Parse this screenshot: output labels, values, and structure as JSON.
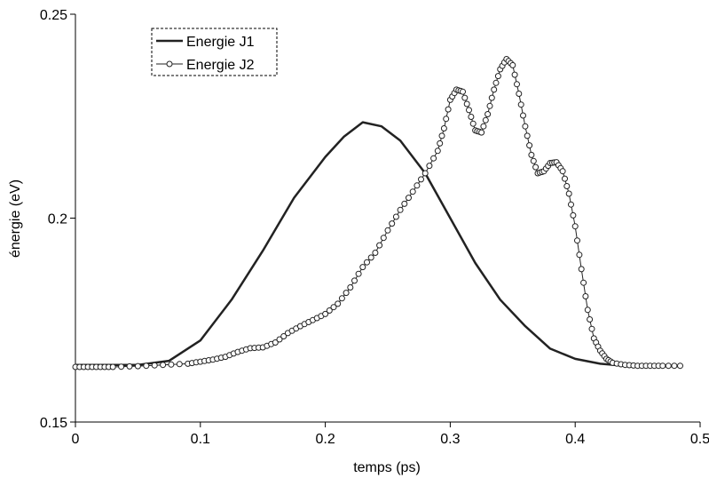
{
  "chart_data": {
    "type": "line",
    "title": "",
    "xlabel": "temps (ps)",
    "ylabel": "énergie (eV)",
    "xlim": [
      0,
      0.5
    ],
    "ylim": [
      0.15,
      0.25
    ],
    "x_ticks": [
      0,
      0.1,
      0.2,
      0.3,
      0.4,
      0.5
    ],
    "x_tick_labels": [
      "0",
      "0.1",
      "0.2",
      "0.3",
      "0.4",
      "0.5"
    ],
    "y_ticks": [
      0.15,
      0.2,
      0.25
    ],
    "y_tick_labels": [
      "0.15",
      "0.2",
      "0.25"
    ],
    "grid": false,
    "legend_position": "top-left",
    "series": [
      {
        "name": "Energie J1",
        "style": "solid-thick",
        "color": "#222222",
        "x": [
          0,
          0.05,
          0.075,
          0.1,
          0.125,
          0.15,
          0.175,
          0.2,
          0.215,
          0.23,
          0.245,
          0.26,
          0.28,
          0.3,
          0.32,
          0.34,
          0.36,
          0.38,
          0.4,
          0.42,
          0.44,
          0.46,
          0.485
        ],
        "y": [
          0.164,
          0.164,
          0.165,
          0.17,
          0.18,
          0.192,
          0.205,
          0.215,
          0.22,
          0.2235,
          0.2225,
          0.219,
          0.211,
          0.2,
          0.189,
          0.18,
          0.1735,
          0.168,
          0.1655,
          0.1643,
          0.1638,
          0.1637,
          0.1637
        ]
      },
      {
        "name": "Energie J2",
        "style": "line-with-open-circles",
        "color": "#222222",
        "x": [
          0,
          0.03,
          0.05,
          0.07,
          0.09,
          0.1,
          0.11,
          0.12,
          0.13,
          0.14,
          0.15,
          0.16,
          0.17,
          0.18,
          0.19,
          0.2,
          0.21,
          0.22,
          0.23,
          0.24,
          0.25,
          0.26,
          0.27,
          0.28,
          0.29,
          0.295,
          0.3,
          0.305,
          0.31,
          0.315,
          0.32,
          0.325,
          0.33,
          0.335,
          0.34,
          0.345,
          0.35,
          0.355,
          0.36,
          0.365,
          0.37,
          0.375,
          0.38,
          0.385,
          0.39,
          0.395,
          0.4,
          0.405,
          0.41,
          0.415,
          0.42,
          0.425,
          0.43,
          0.44,
          0.45,
          0.46,
          0.47,
          0.484
        ],
        "y": [
          0.1635,
          0.1635,
          0.1637,
          0.164,
          0.1643,
          0.1648,
          0.1653,
          0.166,
          0.1672,
          0.1681,
          0.1683,
          0.1695,
          0.1718,
          0.1735,
          0.175,
          0.1765,
          0.179,
          0.183,
          0.188,
          0.1915,
          0.197,
          0.202,
          0.2065,
          0.211,
          0.2165,
          0.222,
          0.229,
          0.2315,
          0.231,
          0.2265,
          0.2215,
          0.221,
          0.2255,
          0.2315,
          0.2365,
          0.239,
          0.2375,
          0.2305,
          0.2225,
          0.2155,
          0.211,
          0.2115,
          0.2135,
          0.2137,
          0.2115,
          0.206,
          0.198,
          0.1875,
          0.1775,
          0.1705,
          0.1675,
          0.1655,
          0.1645,
          0.164,
          0.1638,
          0.1638,
          0.1638,
          0.1638
        ]
      }
    ]
  }
}
